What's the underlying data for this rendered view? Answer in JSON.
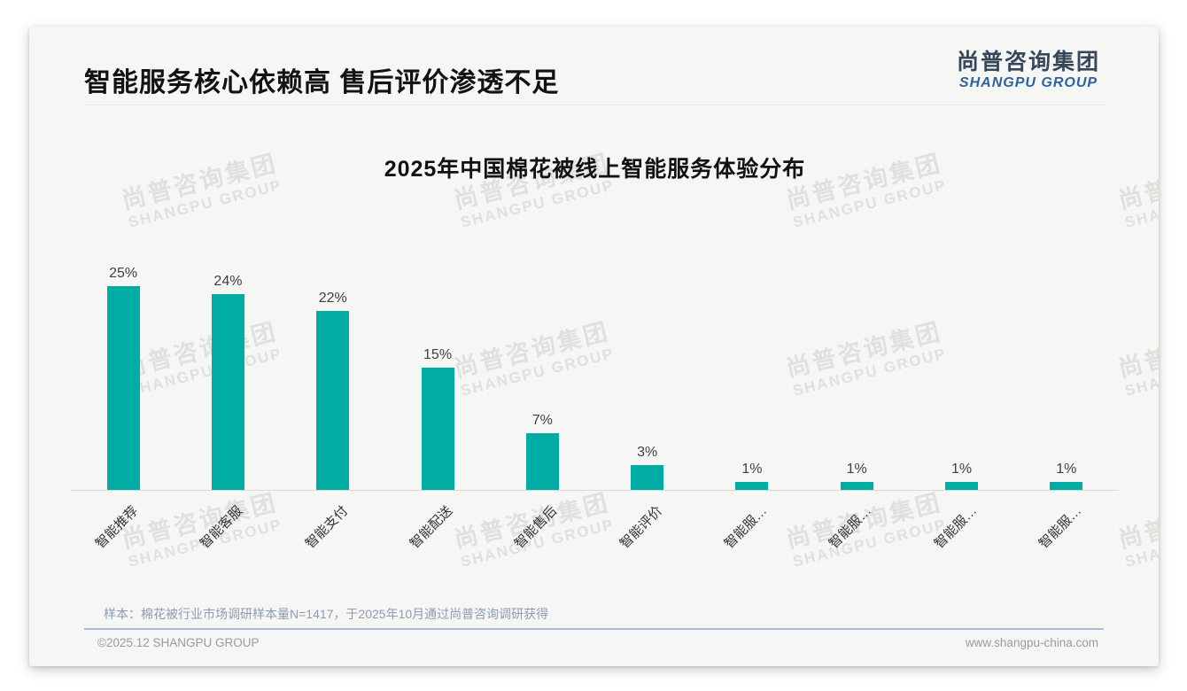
{
  "page": {
    "title": "智能服务核心依赖高 售后评价渗透不足",
    "logo": {
      "cn": "尚普咨询集团",
      "en": "SHANGPU GROUP"
    },
    "watermark": {
      "cn": "尚普咨询集团",
      "en": "SHANGPU GROUP"
    },
    "footnote": "样本：棉花被行业市场调研样本量N=1417，于2025年10月通过尚普咨询调研获得",
    "copyright": "©2025.12 SHANGPU GROUP",
    "website": "www.shangpu-china.com"
  },
  "chart_data": {
    "type": "bar",
    "title": "2025年中国棉花被线上智能服务体验分布",
    "categories": [
      "智能推荐",
      "智能客服",
      "智能支付",
      "智能配送",
      "智能售后",
      "智能评价",
      "智能服…",
      "智能服…",
      "智能服…",
      "智能服…"
    ],
    "values": [
      25,
      24,
      22,
      15,
      7,
      3,
      1,
      1,
      1,
      1
    ],
    "value_labels": [
      "25%",
      "24%",
      "22%",
      "15%",
      "7%",
      "3%",
      "1%",
      "1%",
      "1%",
      "1%"
    ],
    "bar_color": "#00ADA4",
    "xlabel": "",
    "ylabel": "",
    "ylim": [
      0,
      27
    ],
    "grid": false,
    "legend": null,
    "x_tick_rotation_deg": 45
  }
}
